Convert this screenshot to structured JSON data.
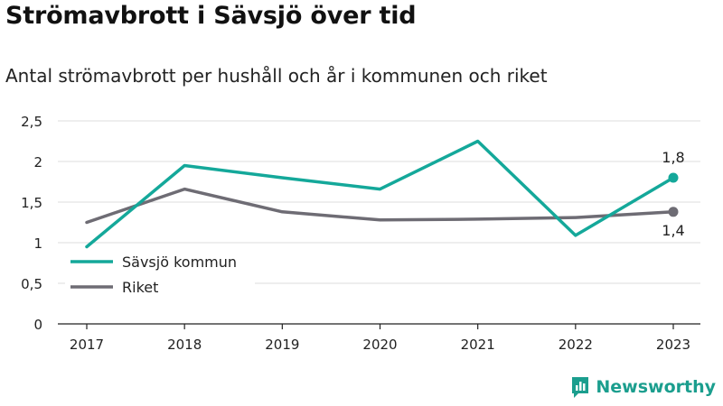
{
  "title": "Strömavbrott i Sävsjö över tid",
  "subtitle": "Antal strömavbrott per hushåll och år i kommunen och riket",
  "brand": "Newsworthy",
  "chart_data": {
    "type": "line",
    "x": [
      "2017",
      "2018",
      "2019",
      "2020",
      "2021",
      "2022",
      "2023"
    ],
    "ylim": [
      0,
      2.5
    ],
    "yticks": [
      0,
      0.5,
      1,
      1.5,
      2,
      2.5
    ],
    "ytick_labels": [
      "0",
      "0,5",
      "1",
      "1,5",
      "2",
      "2,5"
    ],
    "grid": true,
    "legend_position": "bottom-left",
    "series": [
      {
        "name": "Sävsjö kommun",
        "color": "#14a89a",
        "values": [
          0.95,
          1.95,
          1.8,
          1.66,
          2.25,
          1.09,
          1.8
        ],
        "end_label": "1,8"
      },
      {
        "name": "Riket",
        "color": "#6e6c74",
        "values": [
          1.25,
          1.66,
          1.38,
          1.28,
          1.29,
          1.31,
          1.38
        ],
        "end_label": "1,4"
      }
    ]
  }
}
